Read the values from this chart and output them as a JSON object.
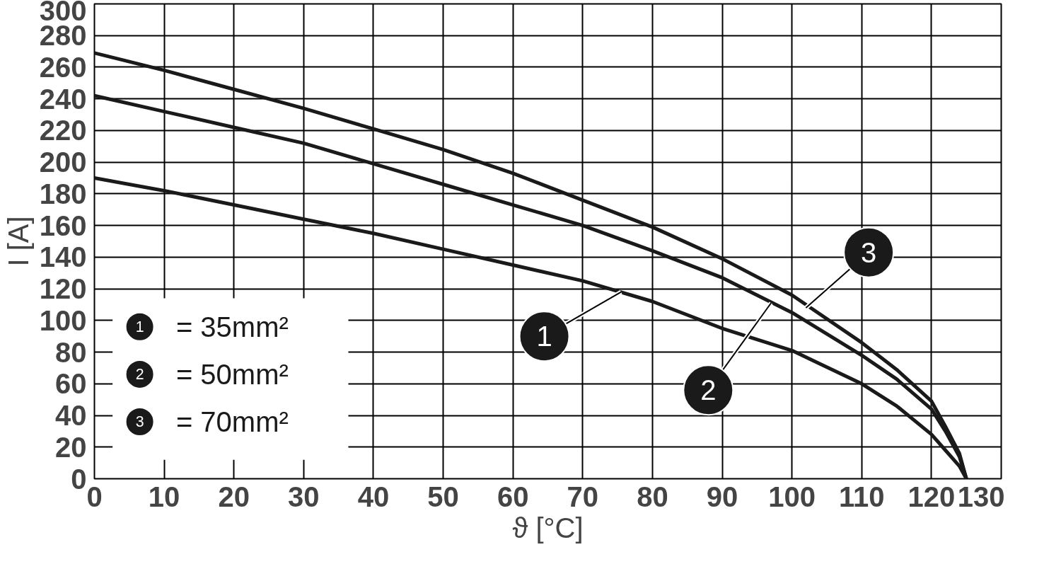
{
  "chart_data": {
    "type": "line",
    "xlabel": "ϑ [°C]",
    "ylabel": "I [A]",
    "x": [
      0,
      10,
      20,
      30,
      40,
      50,
      60,
      70,
      80,
      90,
      100,
      110,
      115,
      120,
      122,
      124,
      125
    ],
    "series": [
      {
        "name": "= 35mm²",
        "color": "#1a1a1a",
        "values": [
          190,
          182,
          173,
          164,
          155,
          145,
          135,
          125,
          112,
          95,
          81,
          60,
          46,
          28,
          18,
          8,
          0
        ]
      },
      {
        "name": "= 50mm²",
        "color": "#1a1a1a",
        "values": [
          242,
          232,
          222,
          212,
          199,
          186,
          173,
          160,
          144,
          127,
          105,
          78,
          63,
          44,
          30,
          14,
          0
        ]
      },
      {
        "name": "= 70mm²",
        "color": "#1a1a1a",
        "values": [
          269,
          258,
          246,
          234,
          221,
          208,
          193,
          176,
          159,
          139,
          116,
          86,
          69,
          49,
          33,
          16,
          0
        ]
      }
    ],
    "annotations": [
      {
        "text": "1",
        "x": 75.5,
        "y": 118
      },
      {
        "text": "2",
        "x": 97,
        "y": 111
      },
      {
        "text": "3",
        "x": 102,
        "y": 108
      }
    ],
    "xlim": [
      0,
      130
    ],
    "ylim": [
      0,
      300
    ],
    "xticks": [
      0,
      10,
      20,
      30,
      40,
      50,
      60,
      70,
      80,
      90,
      100,
      110,
      120,
      130
    ],
    "yticks": [
      0,
      20,
      40,
      60,
      80,
      100,
      120,
      140,
      160,
      180,
      200,
      220,
      240,
      260,
      280,
      300
    ],
    "grid": true,
    "legend": "bottom left",
    "marker": "none",
    "line_style": "solid"
  }
}
